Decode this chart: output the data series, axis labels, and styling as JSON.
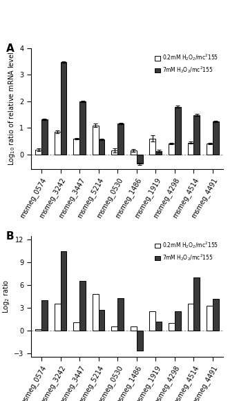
{
  "categories": [
    "msmeg_0574",
    "msmeg_3242",
    "msmeg_3447",
    "msmeg_5214",
    "msmeg_0530",
    "msmeg_1486",
    "msmeg_1919",
    "msmeg_4298",
    "msmeg_4514",
    "msmeg_4491"
  ],
  "panel_A": {
    "low_dose": [
      0.18,
      0.85,
      0.6,
      1.1,
      0.15,
      0.15,
      0.6,
      0.42,
      0.45,
      0.42
    ],
    "high_dose": [
      1.33,
      3.48,
      2.0,
      0.57,
      1.17,
      -0.35,
      0.12,
      1.8,
      1.48,
      1.25
    ],
    "low_err": [
      0.05,
      0.05,
      0.03,
      0.06,
      0.08,
      0.06,
      0.12,
      0.03,
      0.03,
      0.03
    ],
    "high_err": [
      0.03,
      0.03,
      0.03,
      0.03,
      0.03,
      0.03,
      0.05,
      0.03,
      0.04,
      0.03
    ],
    "ylabel": "Log$_{10}$ ratio of relative mRNA level",
    "ylim": [
      -0.55,
      4.0
    ],
    "yticks": [
      0,
      1,
      2,
      3,
      4
    ]
  },
  "panel_B": {
    "low_dose": [
      0.2,
      3.5,
      1.1,
      4.8,
      0.5,
      0.5,
      2.5,
      1.0,
      3.5,
      3.3
    ],
    "high_dose": [
      4.0,
      10.5,
      6.5,
      2.7,
      4.3,
      -2.7,
      1.2,
      2.5,
      7.0,
      4.2
    ],
    "ylabel": "Log$_2$ ratio",
    "ylim": [
      -3.5,
      12.5
    ],
    "yticks": [
      -3,
      0,
      3,
      6,
      9,
      12
    ]
  },
  "legend_low": "0.2mM H$_2$O$_2$/mc$^2$155",
  "legend_high": "7mM H$_2$O$_2$/mc$^2$155",
  "bar_width": 0.32,
  "color_low": "white",
  "color_high": "#3a3a3a",
  "edgecolor": "black",
  "background": "white",
  "label_A": "A",
  "label_B": "B"
}
